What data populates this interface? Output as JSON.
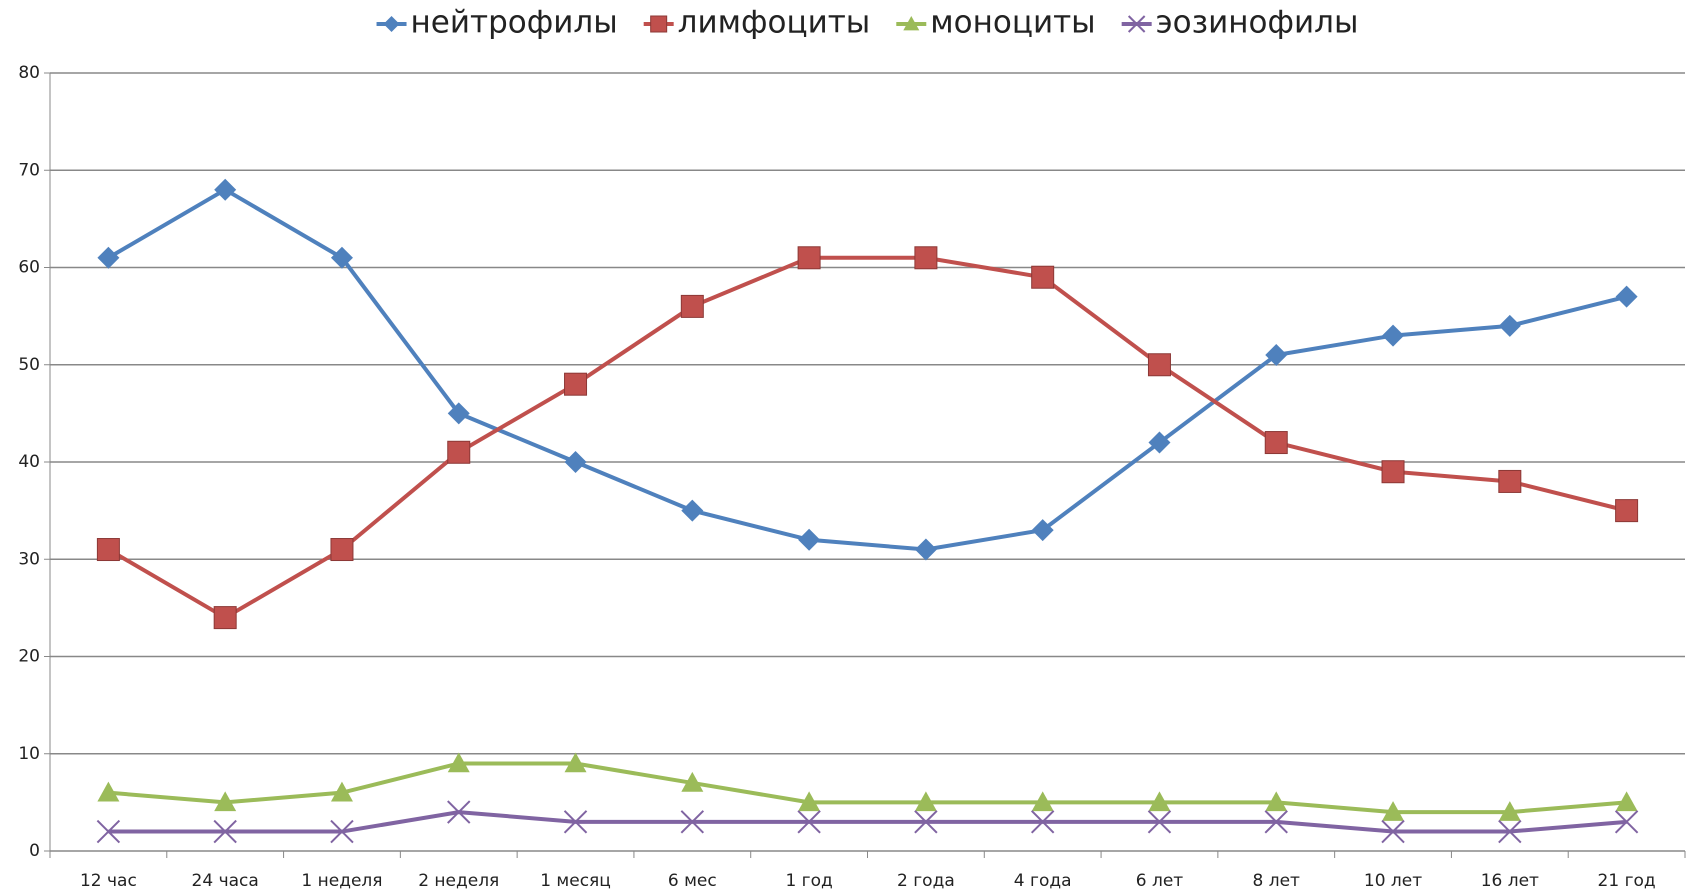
{
  "chart_data": {
    "type": "line",
    "categories": [
      "12 час",
      "24 часа",
      "1 неделя",
      "2 неделя",
      "1 месяц",
      "6 мес",
      "1 год",
      "2 года",
      "4 года",
      "6 лет",
      "8 лет",
      "10 лет",
      "16 лет",
      "21 год"
    ],
    "series": [
      {
        "name": "нейтрофилы",
        "color": "#4f81bd",
        "marker": "diamond",
        "values": [
          61,
          68,
          61,
          45,
          40,
          35,
          32,
          31,
          33,
          42,
          51,
          53,
          54,
          57
        ]
      },
      {
        "name": "лимфоциты",
        "color": "#c0504d",
        "marker": "square",
        "values": [
          31,
          24,
          31,
          41,
          48,
          56,
          61,
          61,
          59,
          50,
          42,
          39,
          38,
          35
        ]
      },
      {
        "name": "моноциты",
        "color": "#9bbb59",
        "marker": "triangle",
        "values": [
          6,
          5,
          6,
          9,
          9,
          7,
          5,
          5,
          5,
          5,
          5,
          4,
          4,
          5
        ]
      },
      {
        "name": "эозинофилы",
        "color": "#8064a2",
        "marker": "x",
        "values": [
          2,
          2,
          2,
          4,
          3,
          3,
          3,
          3,
          3,
          3,
          3,
          2,
          2,
          3
        ]
      }
    ],
    "ylim": [
      0,
      80
    ],
    "yticks": [
      0,
      10,
      20,
      30,
      40,
      50,
      60,
      70,
      80
    ],
    "grid": true,
    "legend": "top"
  }
}
